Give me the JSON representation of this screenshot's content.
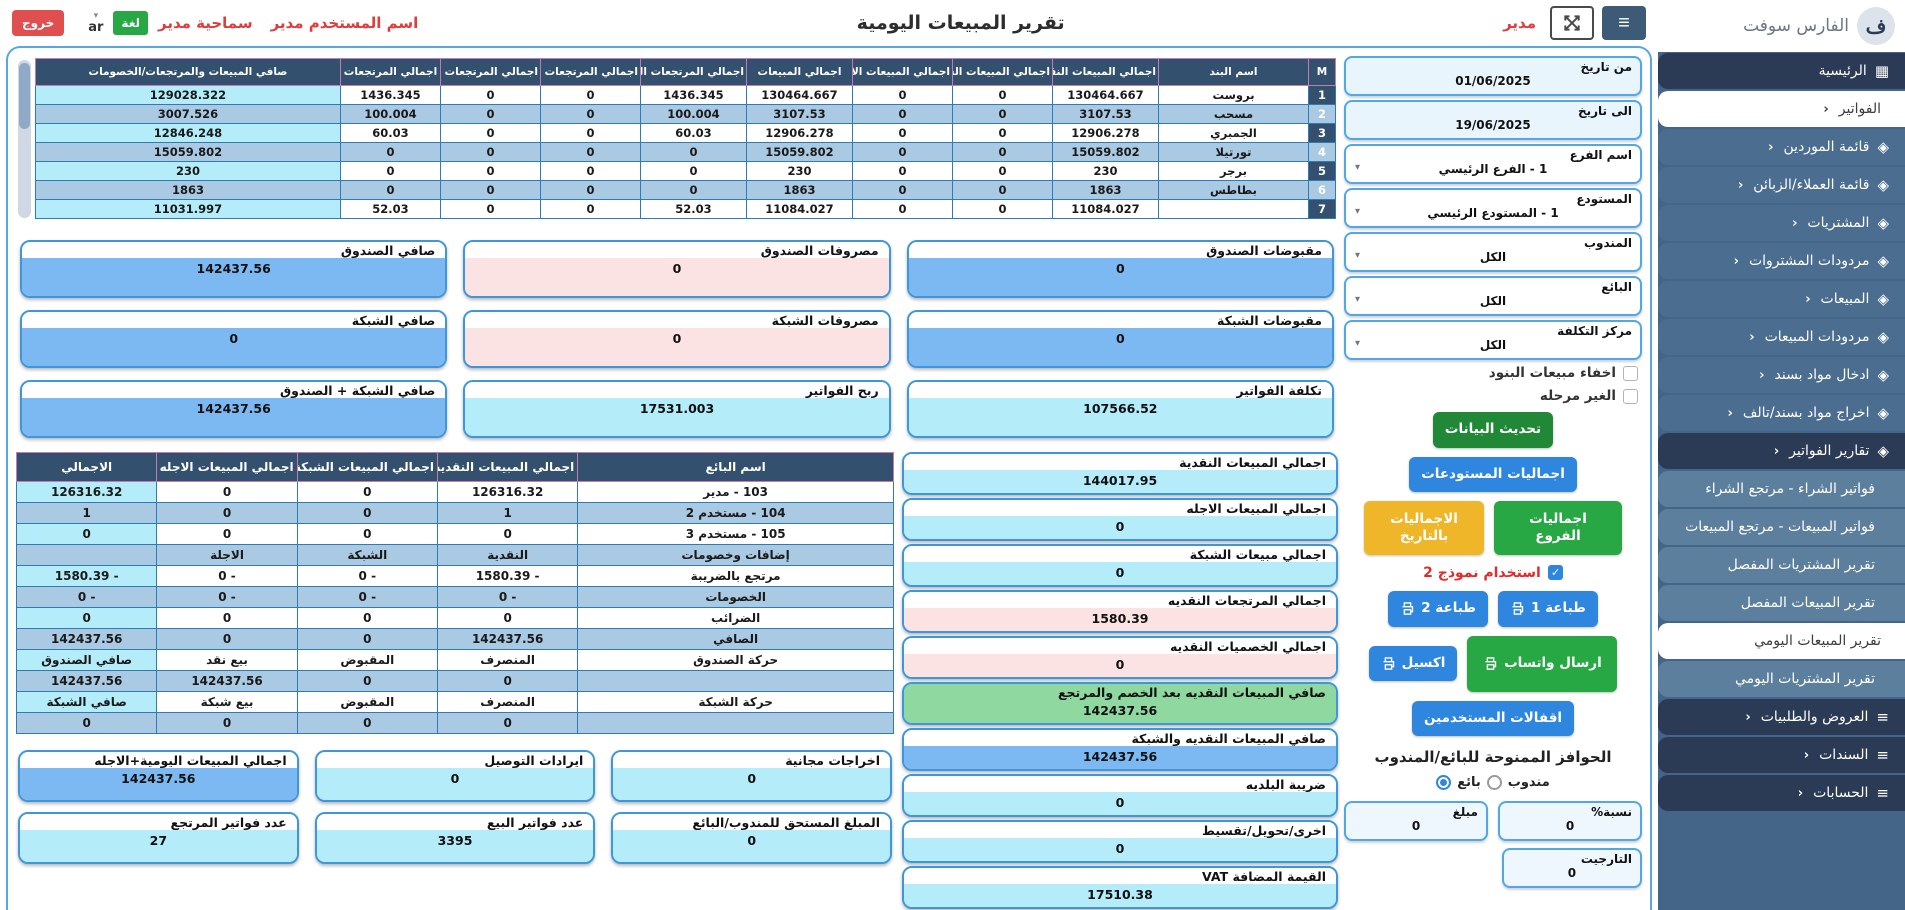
{
  "colors": {
    "accent_blue": "#2e86de",
    "header_navy": "#33516e",
    "stripe_blue": "#aac9e2",
    "cyan": "#b4ecfa",
    "box_blue": "#7cb9f2",
    "pink": "#fbe3e3",
    "green": "#8fd8a0",
    "button_green": "#28a745",
    "button_blue": "#2e86de",
    "button_yellow": "#f0b62a",
    "danger_red": "#e04f4f",
    "sidebar_dark": "#2b3a55",
    "sidebar_steel": "#4a6d90",
    "sidebar_sub": "#5d7f9e"
  },
  "header": {
    "title": "تقرير المبيعات اليومية",
    "role": "مدير",
    "user_label": "اسم المستخدم مدير",
    "permission_label": "سماحية مدير",
    "lang_button": "لغة",
    "lang_code": "ar",
    "logout": "خروج"
  },
  "sidebar": {
    "brand": "الفارس سوفت",
    "items": [
      {
        "label": "الرئيسية",
        "icon": "grid-icon",
        "variant": "dark",
        "chevron": ""
      },
      {
        "label": "الفواتير",
        "icon": "",
        "variant": "active",
        "chevron": "‹"
      },
      {
        "label": "قائمة الموردين",
        "icon": "tags-icon",
        "variant": "steel",
        "chevron": "‹"
      },
      {
        "label": "قائمة العملاء/الزبائن",
        "icon": "tags-icon",
        "variant": "steel",
        "chevron": "‹"
      },
      {
        "label": "المشتريات",
        "icon": "tags-icon",
        "variant": "steel",
        "chevron": "‹"
      },
      {
        "label": "مردودات المشتروات",
        "icon": "tags-icon",
        "variant": "steel",
        "chevron": "‹"
      },
      {
        "label": "المبيعات",
        "icon": "tags-icon",
        "variant": "steel",
        "chevron": "‹"
      },
      {
        "label": "مردودات المبيعات",
        "icon": "tags-icon",
        "variant": "steel",
        "chevron": "‹"
      },
      {
        "label": "ادخال مواد بسند",
        "icon": "tags-icon",
        "variant": "steel",
        "chevron": "‹"
      },
      {
        "label": "اخراج مواد بسند/تالف",
        "icon": "tags-icon",
        "variant": "steel",
        "chevron": "‹"
      },
      {
        "label": "تقارير الفواتير",
        "icon": "tags-icon",
        "variant": "dark",
        "chevron": "‹"
      },
      {
        "label": "فواتير الشراء - مرتجع الشراء",
        "icon": "",
        "variant": "sub",
        "chevron": ""
      },
      {
        "label": "فواتير المبيعات - مرتجع المبيعات",
        "icon": "",
        "variant": "sub",
        "chevron": ""
      },
      {
        "label": "تقرير المشتريات المفصل",
        "icon": "",
        "variant": "sub",
        "chevron": ""
      },
      {
        "label": "تقرير المبيعات المفصل",
        "icon": "",
        "variant": "sub",
        "chevron": ""
      },
      {
        "label": "تقرير المبيعات اليومي",
        "icon": "",
        "variant": "active",
        "chevron": ""
      },
      {
        "label": "تقرير المشتريات اليومي",
        "icon": "",
        "variant": "sub",
        "chevron": ""
      },
      {
        "label": "العروض والطلبيات",
        "icon": "list-icon",
        "variant": "dark",
        "chevron": "‹"
      },
      {
        "label": "السندات",
        "icon": "list-icon",
        "variant": "dark",
        "chevron": "‹"
      },
      {
        "label": "الحسابات",
        "icon": "list-icon",
        "variant": "dark",
        "chevron": "‹"
      }
    ]
  },
  "filters": [
    {
      "label": "من تاريخ",
      "value": "01/06/2025",
      "kind": "date"
    },
    {
      "label": "الى تاريخ",
      "value": "19/06/2025",
      "kind": "date"
    },
    {
      "label": "اسم الفرع",
      "value": "1 - الفرع الرئيسي",
      "kind": "select"
    },
    {
      "label": "المستودع",
      "value": "1 - المستودع الرئيسي",
      "kind": "select"
    },
    {
      "label": "المندوب",
      "value": "الكل",
      "kind": "select"
    },
    {
      "label": "البائع",
      "value": "الكل",
      "kind": "select"
    },
    {
      "label": "مركز التكلفة",
      "value": "الكل",
      "kind": "select"
    }
  ],
  "controls": {
    "hide_items_label": "اخفاء مبيعات البنود",
    "unposted_label": "الغير مرحله",
    "refresh": "تحديث البيانات",
    "warehouse_totals": "اجماليات المستودعات",
    "branch_totals": "اجماليات الفروع",
    "date_totals": "الاجماليات بالتاريخ",
    "use_model": "استخدام نموذج 2",
    "use_model_state": "checked",
    "print2": "طباعة 2",
    "print1": "طباعة 1",
    "excel": "اكسيل",
    "whatsapp": "ارسال واتساب",
    "user_locks": "اقفالات المستخدمين"
  },
  "items_table": {
    "columns": [
      "M",
      "اسم البند",
      "اجمالي المبيعات النقدية",
      "اجمالي المبيعات الشبكة",
      "اجمالي المبيعات الاجله",
      "اجمالي المبيعات",
      "اجمالي المرتجعات النقديه",
      "اجمالي المرتجعات الشبكة",
      "اجمالي المرتجعات الاجله",
      "اجمالي المرتجعات",
      "صافي المبيعات والمرتجعات/الخصومات"
    ],
    "rows": [
      [
        "1",
        "بروست",
        "130464.667",
        "0",
        "0",
        "130464.667",
        "1436.345",
        "0",
        "0",
        "1436.345",
        "129028.322"
      ],
      [
        "2",
        "مسحب",
        "3107.53",
        "0",
        "0",
        "3107.53",
        "100.004",
        "0",
        "0",
        "100.004",
        "3007.526"
      ],
      [
        "3",
        "الجمبري",
        "12906.278",
        "0",
        "0",
        "12906.278",
        "60.03",
        "0",
        "0",
        "60.03",
        "12846.248"
      ],
      [
        "4",
        "تورتيلا",
        "15059.802",
        "0",
        "0",
        "15059.802",
        "0",
        "0",
        "0",
        "0",
        "15059.802"
      ],
      [
        "5",
        "برجر",
        "230",
        "0",
        "0",
        "230",
        "0",
        "0",
        "0",
        "0",
        "230"
      ],
      [
        "6",
        "بطاطس",
        "1863",
        "0",
        "0",
        "1863",
        "0",
        "0",
        "0",
        "0",
        "1863"
      ],
      [
        "7",
        "",
        "11084.027",
        "0",
        "0",
        "11084.027",
        "52.03",
        "0",
        "0",
        "52.03",
        "11031.997"
      ]
    ]
  },
  "summary_boxes": [
    {
      "label": "مقبوضات الصندوق",
      "value": "0",
      "variant": "blue"
    },
    {
      "label": "مصروفات الصندوق",
      "value": "0",
      "variant": "pink"
    },
    {
      "label": "صافي الصندوق",
      "value": "142437.56",
      "variant": "blue"
    },
    {
      "label": "مقبوضات الشبكة",
      "value": "0",
      "variant": "blue"
    },
    {
      "label": "مصروفات الشبكة",
      "value": "0",
      "variant": "pink"
    },
    {
      "label": "صافي الشبكة",
      "value": "0",
      "variant": "blue"
    },
    {
      "label": "تكلفة الفواتير",
      "value": "107566.52",
      "variant": "cyan"
    },
    {
      "label": "ربح الفواتير",
      "value": "17531.003",
      "variant": "cyan"
    },
    {
      "label": "صافي الشبكة + الصندوق",
      "value": "142437.56",
      "variant": "blue"
    }
  ],
  "sellers_table": {
    "columns": [
      "اسم البائع",
      "اجمالي المبيعات النقدية",
      "اجمالي المبيعات الشبكة",
      "اجمالي المبيعات الاجله",
      "الاجمالي"
    ],
    "rows": [
      [
        "103 - مدير",
        "126316.32",
        "0",
        "0",
        "126316.32"
      ],
      [
        "104 - مستخدم 2",
        "1",
        "0",
        "0",
        "1"
      ],
      [
        "105 - مستخدم 3",
        "0",
        "0",
        "0",
        "0"
      ],
      [
        "إضافات وخصومات",
        "النقدية",
        "الشبكة",
        "الاجلة",
        ""
      ],
      [
        "مرتجع بالضريبة",
        "- 1580.39",
        "- 0",
        "- 0",
        "- 1580.39"
      ],
      [
        "الخصومات",
        "- 0",
        "- 0",
        "- 0",
        "- 0"
      ],
      [
        "الضرائب",
        "0",
        "0",
        "0",
        "0"
      ],
      [
        "الصافي",
        "142437.56",
        "0",
        "0",
        "142437.56"
      ],
      [
        "حركة الصندوق",
        "المنصرف",
        "المقبوض",
        "بيع نقد",
        "صافي الصندوق"
      ],
      [
        "",
        "0",
        "0",
        "142437.56",
        "142437.56"
      ],
      [
        "حركة الشبكة",
        "المنصرف",
        "المقبوض",
        "بيع شبكة",
        "صافي الشبكة"
      ],
      [
        "",
        "0",
        "0",
        "0",
        "0"
      ]
    ]
  },
  "totals_boxes": [
    {
      "label": "اجمالي المبيعات النقدية",
      "value": "144017.95",
      "variant": "cyan"
    },
    {
      "label": "اجمالي المبيعات الاجله",
      "value": "0",
      "variant": "cyan"
    },
    {
      "label": "اجمالي مبيعات الشبكة",
      "value": "0",
      "variant": "cyan"
    },
    {
      "label": "اجمالي المرتجعات النقديه",
      "value": "1580.39",
      "variant": "pink"
    },
    {
      "label": "اجمالي الخصميات النقديه",
      "value": "0",
      "variant": "pink"
    },
    {
      "label": "صافي المبيعات النقديه بعد الخصم والمرتجع",
      "value": "142437.56",
      "variant": "green"
    },
    {
      "label": "صافي المبيعات النقديه والشبكة",
      "value": "142437.56",
      "variant": "blue"
    },
    {
      "label": "ضريبة البلديه",
      "value": "0",
      "variant": "cyan"
    },
    {
      "label": "اخرى/تحويل/تقسيط",
      "value": "0",
      "variant": "cyan"
    },
    {
      "label": "القيمة المضافة VAT",
      "value": "17510.38",
      "variant": "cyan"
    }
  ],
  "bottom_boxes": [
    {
      "label": "اخراجات مجانية",
      "value": "0",
      "variant": "cyan"
    },
    {
      "label": "ايرادات التوصيل",
      "value": "0",
      "variant": "cyan"
    },
    {
      "label": "اجمالي المبيعات اليومية+الاجله",
      "value": "142437.56",
      "variant": "blue"
    },
    {
      "label": "المبلغ المستحق للمندوب/البائع",
      "value": "0",
      "variant": "cyan"
    },
    {
      "label": "عدد فواتير البيع",
      "value": "3395",
      "variant": "cyan"
    },
    {
      "label": "عدد فواتير المرتجع",
      "value": "27",
      "variant": "cyan"
    }
  ],
  "incentives": {
    "title": "الحوافز الممنوحة للبائع/المندوب",
    "seller_label": "بائع",
    "rep_label": "مندوب",
    "seller_state": "selected",
    "rep_state": "",
    "percent_label": "نسبة%",
    "percent_value": "0",
    "amount_label": "مبلغ",
    "amount_value": "0",
    "target_label": "التارجيت",
    "target_value": "0"
  }
}
